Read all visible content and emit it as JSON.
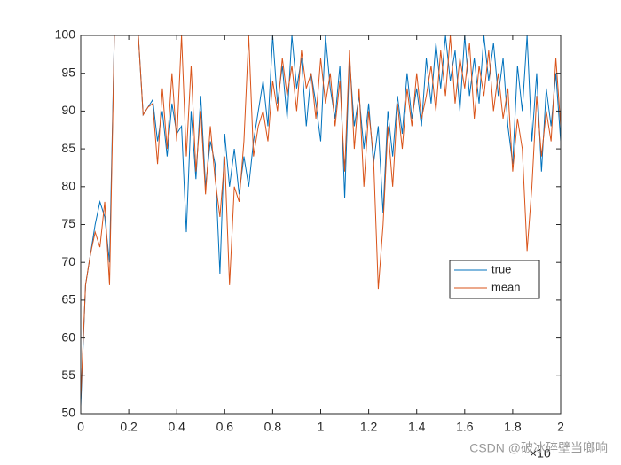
{
  "chart_data": {
    "type": "line",
    "x": [
      0,
      0.02,
      0.04,
      0.06,
      0.08,
      0.1,
      0.12,
      0.14,
      0.16,
      0.18,
      0.2,
      0.22,
      0.24,
      0.26,
      0.28,
      0.3,
      0.32,
      0.34,
      0.36,
      0.38,
      0.4,
      0.42,
      0.44,
      0.46,
      0.48,
      0.5,
      0.52,
      0.54,
      0.56,
      0.58,
      0.6,
      0.62,
      0.64,
      0.66,
      0.68,
      0.7,
      0.72,
      0.74,
      0.76,
      0.78,
      0.8,
      0.82,
      0.84,
      0.86,
      0.88,
      0.9,
      0.92,
      0.94,
      0.96,
      0.98,
      1,
      1.02,
      1.04,
      1.06,
      1.08,
      1.1,
      1.12,
      1.14,
      1.16,
      1.18,
      1.2,
      1.22,
      1.24,
      1.26,
      1.28,
      1.3,
      1.32,
      1.34,
      1.36,
      1.38,
      1.4,
      1.42,
      1.44,
      1.46,
      1.48,
      1.5,
      1.52,
      1.54,
      1.56,
      1.58,
      1.6,
      1.62,
      1.64,
      1.66,
      1.68,
      1.7,
      1.72,
      1.74,
      1.76,
      1.78,
      1.8,
      1.82,
      1.84,
      1.86,
      1.88,
      1.9,
      1.92,
      1.94,
      1.96,
      1.98,
      2
    ],
    "series": [
      {
        "name": "true",
        "color": "#0072BD",
        "values": [
          51,
          67,
          71,
          75,
          78,
          76,
          70,
          100,
          100,
          100,
          100,
          100,
          100,
          89.5,
          90.5,
          91.5,
          86,
          90,
          84,
          91,
          87,
          88,
          74,
          90,
          81,
          92,
          80,
          86,
          83,
          68.5,
          87,
          80,
          85,
          79,
          84,
          80,
          86,
          90,
          94,
          88,
          100,
          91,
          96,
          89,
          100,
          93,
          97,
          88,
          95,
          91,
          86,
          100,
          93,
          89,
          96,
          78.5,
          97,
          88,
          92,
          85,
          91,
          83,
          88,
          76.5,
          90,
          84,
          92,
          87,
          95,
          89,
          93,
          88,
          97,
          91,
          99,
          93,
          100,
          94,
          98,
          90,
          100,
          92,
          97,
          91,
          100,
          94,
          99,
          92,
          97,
          88,
          83,
          96,
          90,
          100,
          86,
          95,
          82,
          93,
          88,
          95,
          86
        ]
      },
      {
        "name": "mean",
        "color": "#D95319",
        "values": [
          52,
          67,
          71,
          74,
          72,
          78,
          67,
          100,
          100,
          100,
          100,
          100,
          100,
          89.5,
          90.5,
          91,
          83,
          93,
          85,
          95,
          86,
          100,
          84,
          96,
          82,
          90,
          79,
          88,
          81,
          76,
          84,
          67,
          80,
          78,
          86,
          100,
          84,
          88,
          90,
          86,
          94,
          90,
          97,
          92,
          96,
          90,
          98,
          93,
          95,
          89,
          97,
          91,
          95,
          88,
          94,
          82,
          98,
          85,
          93,
          80,
          90,
          84,
          66.5,
          75,
          88,
          80,
          91,
          85,
          93,
          88,
          95,
          89,
          92,
          96,
          90,
          98,
          92,
          100,
          91,
          97,
          93,
          99,
          89,
          96,
          92,
          98,
          90,
          95,
          89,
          93,
          82,
          89,
          85,
          71.5,
          80,
          92,
          84,
          90,
          86,
          97,
          88
        ]
      }
    ],
    "xlim": [
      0,
      2
    ],
    "xticks": [
      0,
      0.2,
      0.4,
      0.6,
      0.8,
      1,
      1.2,
      1.4,
      1.6,
      1.8,
      2
    ],
    "ylim": [
      50,
      100
    ],
    "yticks": [
      50,
      55,
      60,
      65,
      70,
      75,
      80,
      85,
      90,
      95,
      100
    ],
    "x_exponent_label": "×10",
    "legend_position": "east",
    "grid": false,
    "watermark": "CSDN @破冰碎壁当啷响"
  }
}
